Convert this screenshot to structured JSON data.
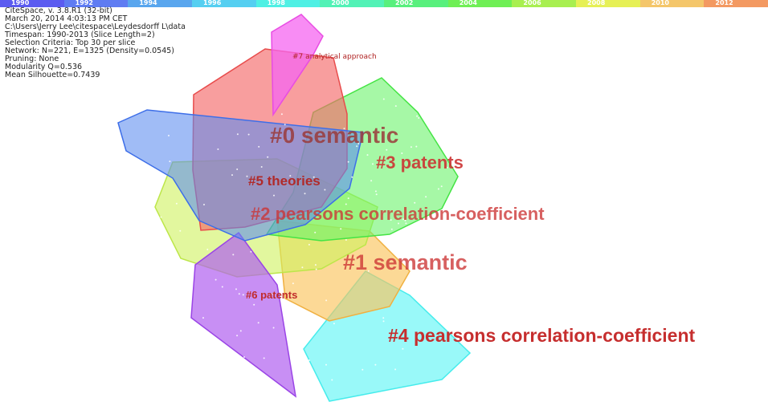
{
  "timeline": {
    "years": [
      "1990",
      "1992",
      "1994",
      "1996",
      "1998",
      "2000",
      "2002",
      "2004",
      "2006",
      "2008",
      "2010",
      "2012"
    ],
    "colors": [
      "#5b5bf0",
      "#5f7cf2",
      "#59a6ee",
      "#55cff1",
      "#4ff0e4",
      "#52f2b6",
      "#58f07d",
      "#6fef55",
      "#a8ef50",
      "#e6f055",
      "#f4c66a",
      "#f39961"
    ]
  },
  "info": {
    "line1": "CiteSpace, v. 3.8.R1 (32-bit)",
    "line2": "March 20, 2014 4:03:13 PM CET",
    "line3": "C:\\Users\\Jerry Lee\\citespace\\Leydesdorff L\\data",
    "line4": "Timespan: 1990-2013 (Slice Length=2)",
    "line5": "Selection Criteria: Top 30 per slice",
    "line6": "Network: N=221, E=1325 (Density=0.0545)",
    "line7": "Pruning: None",
    "line8": "Modularity Q=0.536",
    "line9": "Mean Silhouette=0.7439"
  },
  "clusters": {
    "c0": {
      "label": "#0  semantic",
      "color": "#f46a6a"
    },
    "c1": {
      "label": "#1  semantic",
      "color": "#fbc55e"
    },
    "c2": {
      "label": "#2  pearsons correlation-coefficient",
      "color": "#cff25e"
    },
    "c3": {
      "label": "#3  patents",
      "color": "#6af36a"
    },
    "c4": {
      "label": "#4  pearsons correlation-coefficient",
      "color": "#62f6f6"
    },
    "c5": {
      "label": "#5 theories",
      "color": "#5b8bf0"
    },
    "c6": {
      "label": "#6  patents",
      "color": "#b160f0"
    },
    "c7": {
      "label": "#7 analytical approach",
      "color": "#f565f0"
    }
  }
}
